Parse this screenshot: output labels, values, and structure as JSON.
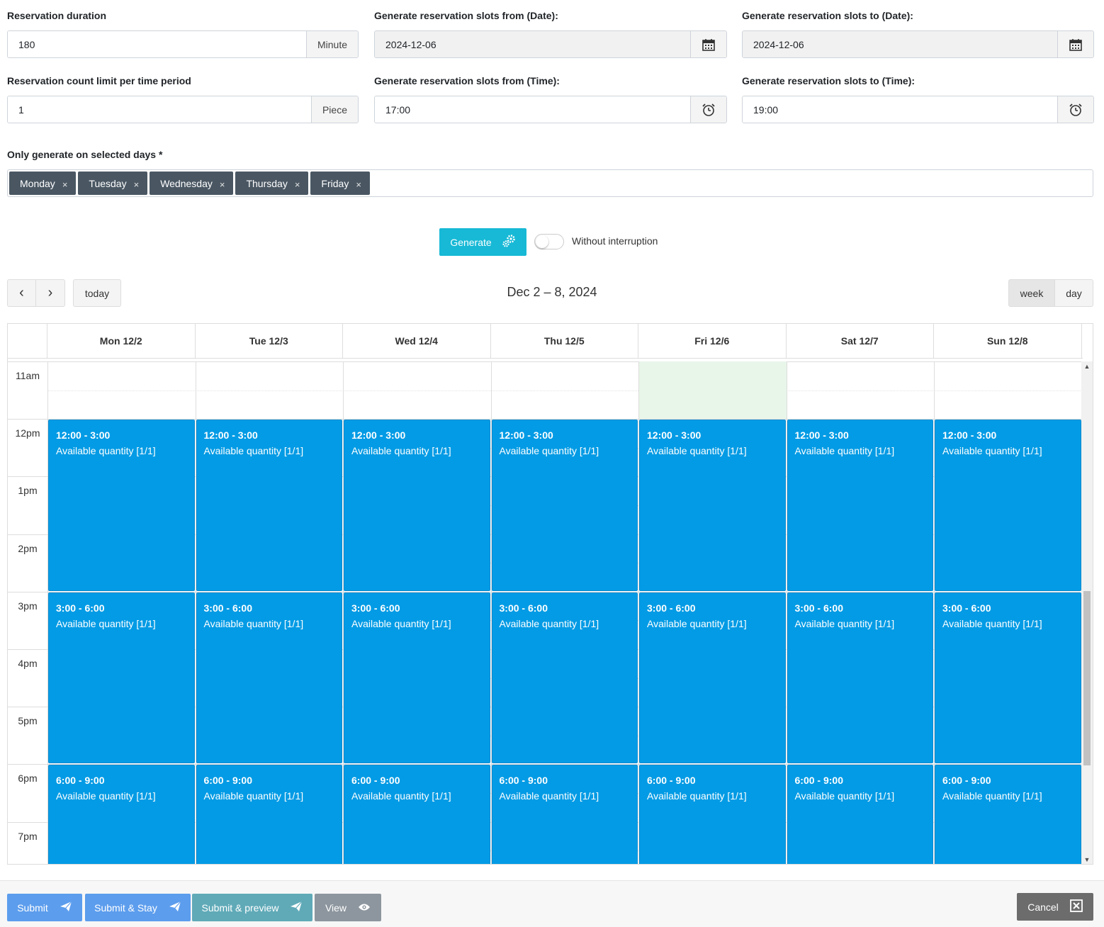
{
  "form": {
    "duration": {
      "label": "Reservation duration",
      "value": "180",
      "unit": "Minute"
    },
    "count_limit": {
      "label": "Reservation count limit per time period",
      "value": "1",
      "unit": "Piece"
    },
    "date_from": {
      "label": "Generate reservation slots from (Date):",
      "value": "2024-12-06"
    },
    "date_to": {
      "label": "Generate reservation slots to (Date):",
      "value": "2024-12-06"
    },
    "time_from": {
      "label": "Generate reservation slots from (Time):",
      "value": "17:00"
    },
    "time_to": {
      "label": "Generate reservation slots to (Time):",
      "value": "19:00"
    },
    "days": {
      "label": "Only generate on selected days *",
      "selected": [
        "Monday",
        "Tuesday",
        "Wednesday",
        "Thursday",
        "Friday"
      ],
      "remove_glyph": "×"
    }
  },
  "generate": {
    "label": "Generate",
    "toggle_label": "Without interruption",
    "toggle_on": false
  },
  "calendar": {
    "title": "Dec 2 – 8, 2024",
    "nav": {
      "prev": "‹",
      "next": "›",
      "today": "today",
      "week": "week",
      "day": "day"
    },
    "days": [
      "Mon 12/2",
      "Tue 12/3",
      "Wed 12/4",
      "Thu 12/5",
      "Fri 12/6",
      "Sat 12/7",
      "Sun 12/8"
    ],
    "today_index": 4,
    "hours": [
      "11am",
      "12pm",
      "1pm",
      "2pm",
      "3pm",
      "4pm",
      "5pm",
      "6pm",
      "7pm"
    ],
    "slot_label": "Available quantity [1/1]",
    "slots": [
      "12:00 - 3:00",
      "3:00 - 6:00",
      "6:00 - 9:00"
    ],
    "event_color": "#039be5",
    "today_color": "#e8f5e9"
  },
  "footer": {
    "submit": "Submit",
    "submit_stay": "Submit & Stay",
    "submit_preview": "Submit & preview",
    "view": "View",
    "cancel": "Cancel"
  }
}
